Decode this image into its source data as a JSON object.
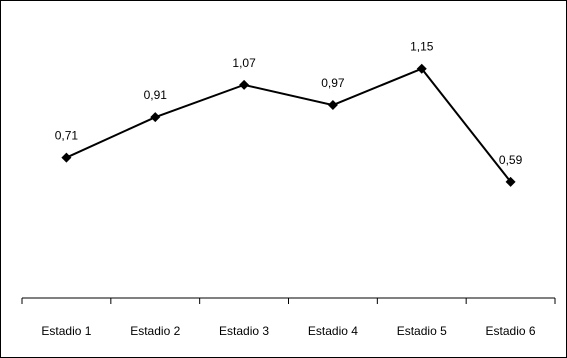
{
  "chart_data": {
    "type": "line",
    "categories": [
      "Estadio 1",
      "Estadio 2",
      "Estadio 3",
      "Estadio 4",
      "Estadio 5",
      "Estadio 6"
    ],
    "series": [
      {
        "values": [
          0.71,
          0.91,
          1.07,
          0.97,
          1.15,
          0.59
        ],
        "value_labels": [
          "0,71",
          "0,91",
          "1,07",
          "0,97",
          "1,15",
          "0,59"
        ],
        "color": "#000000",
        "marker": "diamond"
      }
    ],
    "title": "",
    "xlabel": "",
    "ylabel": "",
    "ylim": [
      0,
      1.3
    ],
    "grid": false,
    "legend": "none"
  }
}
